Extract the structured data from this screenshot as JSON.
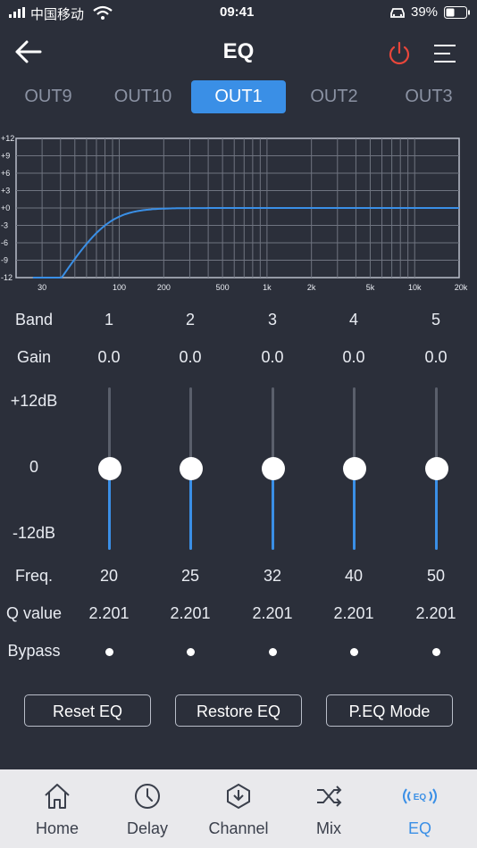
{
  "status": {
    "carrier": "中国移动",
    "time": "09:41",
    "battery": "39%"
  },
  "header": {
    "title": "EQ",
    "back_icon": "arrow-left-icon",
    "power_icon": "power-icon",
    "menu_icon": "menu-icon",
    "accent_power": "#e8463a"
  },
  "tabs": [
    {
      "label": "OUT9",
      "active": false
    },
    {
      "label": "OUT10",
      "active": false
    },
    {
      "label": "OUT1",
      "active": true
    },
    {
      "label": "OUT2",
      "active": false
    },
    {
      "label": "OUT3",
      "active": false
    }
  ],
  "graph": {
    "y_ticks": [
      "+12",
      "+9",
      "+6",
      "+3",
      "+0",
      "-3",
      "-6",
      "-9",
      "-12"
    ],
    "x_ticks": [
      "30",
      "100",
      "200",
      "500",
      "1k",
      "2k",
      "5k",
      "10k",
      "20k"
    ],
    "curve_color": "#3a8fe6"
  },
  "table": {
    "band_label": "Band",
    "gain_label": "Gain",
    "freq_label": "Freq.",
    "q_label": "Q value",
    "bypass_label": "Bypass",
    "db_top": "+12dB",
    "db_mid": "0",
    "db_bottom": "-12dB",
    "bands": [
      {
        "band": "1",
        "gain": "0.0",
        "freq": "20",
        "q": "2.201",
        "level": 0.5
      },
      {
        "band": "2",
        "gain": "0.0",
        "freq": "25",
        "q": "2.201",
        "level": 0.5
      },
      {
        "band": "3",
        "gain": "0.0",
        "freq": "32",
        "q": "2.201",
        "level": 0.5
      },
      {
        "band": "4",
        "gain": "0.0",
        "freq": "40",
        "q": "2.201",
        "level": 0.5
      },
      {
        "band": "5",
        "gain": "0.0",
        "freq": "50",
        "q": "2.201",
        "level": 0.5
      }
    ]
  },
  "buttons": {
    "reset": "Reset EQ",
    "restore": "Restore EQ",
    "peq": "P.EQ Mode"
  },
  "tabbar": [
    {
      "label": "Home",
      "icon": "home-icon",
      "active": false
    },
    {
      "label": "Delay",
      "icon": "clock-icon",
      "active": false
    },
    {
      "label": "Channel",
      "icon": "channel-icon",
      "active": false
    },
    {
      "label": "Mix",
      "icon": "shuffle-icon",
      "active": false
    },
    {
      "label": "EQ",
      "icon": "eq-icon",
      "active": true
    }
  ],
  "colors": {
    "background": "#2b2f3a",
    "accent": "#3a8fe6",
    "tabbar_bg": "#e9e9ec"
  }
}
